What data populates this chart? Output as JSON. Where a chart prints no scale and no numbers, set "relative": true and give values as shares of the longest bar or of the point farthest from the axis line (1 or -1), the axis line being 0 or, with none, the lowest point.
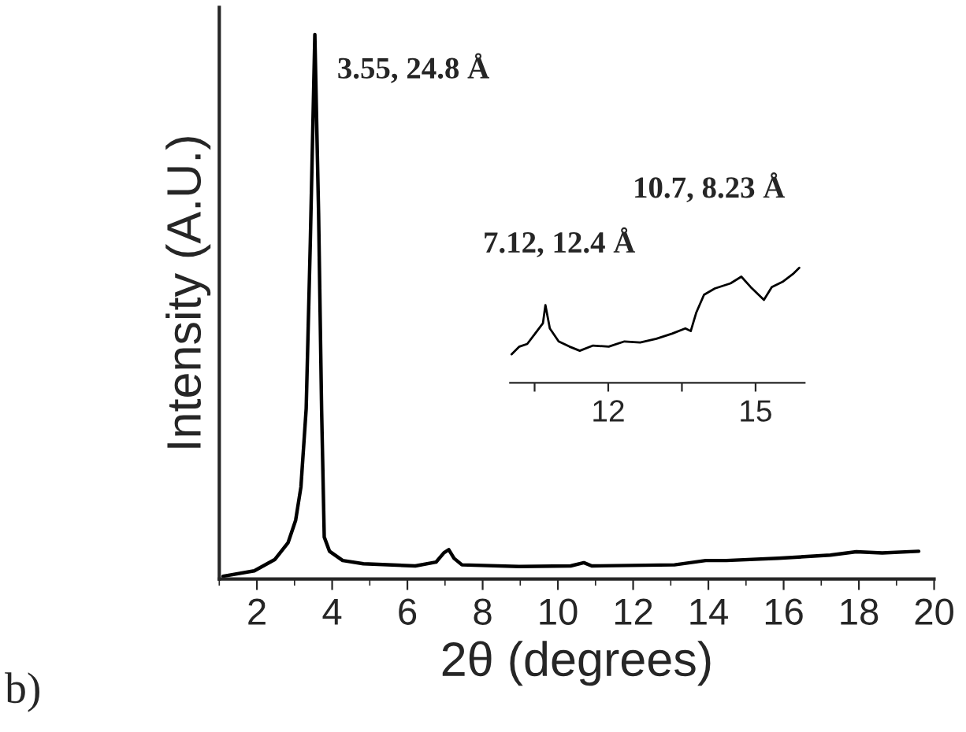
{
  "chart_data": [
    {
      "type": "line",
      "relative": true,
      "xlabel": "2θ (degrees)",
      "ylabel": "Intensity (A.U.)",
      "x": [
        1.1,
        1.93,
        2.48,
        2.83,
        3.03,
        3.17,
        3.31,
        3.42,
        3.54,
        3.64,
        3.72,
        3.79,
        3.93,
        4.28,
        4.83,
        6.21,
        6.76,
        6.97,
        7.1,
        7.24,
        7.45,
        8.97,
        10.34,
        10.69,
        10.9,
        13.1,
        13.93,
        14.48,
        15.86,
        17.24,
        17.93,
        18.62,
        19.59
      ],
      "series": [
        {
          "color": "#000000",
          "values": [
            0.005,
            0.015,
            0.036,
            0.067,
            0.108,
            0.169,
            0.313,
            0.62,
            1.0,
            0.67,
            0.31,
            0.077,
            0.051,
            0.034,
            0.028,
            0.024,
            0.031,
            0.048,
            0.054,
            0.038,
            0.026,
            0.023,
            0.024,
            0.03,
            0.024,
            0.026,
            0.034,
            0.034,
            0.038,
            0.044,
            0.05,
            0.048,
            0.051
          ]
        }
      ],
      "xlim": [
        1,
        20
      ],
      "xticks": [
        2,
        4,
        6,
        8,
        10,
        12,
        14,
        16,
        18,
        20
      ],
      "tick_labels": "x",
      "grid": false,
      "legend": false,
      "annotations": [
        {
          "text": "3.55, 24.8 Å",
          "x": 3.55,
          "y": 1.0
        },
        "7.12, 12.4 Å",
        "10.7, 8.23 Å",
        "b)"
      ]
    },
    {
      "type": "line",
      "relative": true,
      "x": [
        10.03,
        10.19,
        10.35,
        10.51,
        10.67,
        10.72,
        10.81,
        10.99,
        11.21,
        11.42,
        11.69,
        12.01,
        12.33,
        12.65,
        12.98,
        13.3,
        13.57,
        13.68,
        13.79,
        13.95,
        14.17,
        14.49,
        14.71,
        14.9,
        15.17,
        15.33,
        15.55,
        15.76,
        15.89
      ],
      "series": [
        {
          "color": "#000000",
          "values": [
            0.248,
            0.315,
            0.338,
            0.428,
            0.518,
            0.676,
            0.473,
            0.36,
            0.315,
            0.279,
            0.324,
            0.315,
            0.36,
            0.351,
            0.383,
            0.428,
            0.473,
            0.45,
            0.608,
            0.766,
            0.82,
            0.865,
            0.923,
            0.833,
            0.721,
            0.833,
            0.878,
            0.946,
            1.0
          ]
        }
      ],
      "xlim": [
        10,
        16
      ],
      "xticks": [
        {
          "value": 10.5,
          "label": null
        },
        12,
        {
          "value": 13.5,
          "label": null
        },
        15
      ],
      "tick_labels": "x",
      "grid": false,
      "legend": false
    }
  ]
}
